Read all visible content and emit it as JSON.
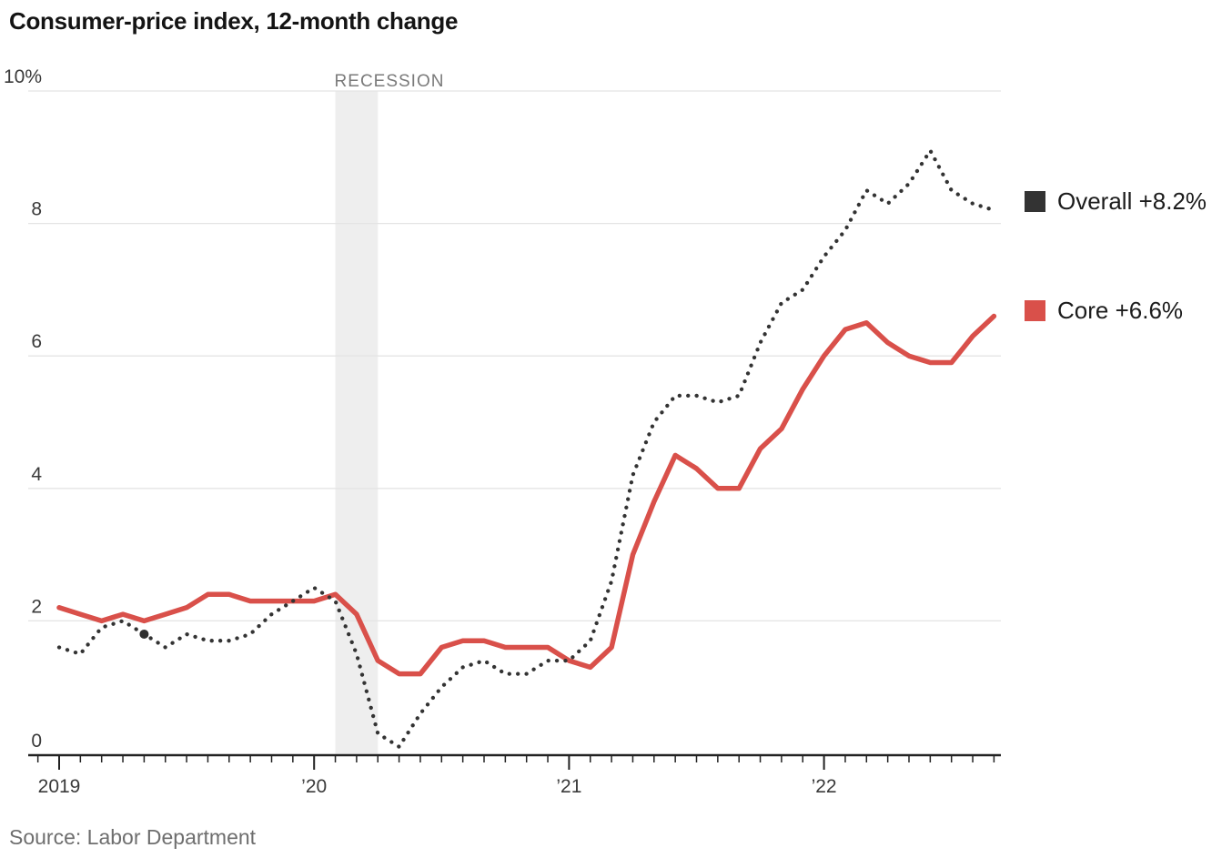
{
  "title": "Consumer-price index, 12-month change",
  "source_note": "Source: Labor Department",
  "legend": {
    "overall": {
      "label": "Overall +8.2%",
      "color": "#333333"
    },
    "core": {
      "label": "Core +6.6%",
      "color": "#d9504a"
    }
  },
  "colors": {
    "grid": "#e4e4e4",
    "axis": "#222222",
    "band": "#eeeeee",
    "recession_text": "#7a7a7a",
    "axis_text": "#3a3a3a"
  },
  "chart_data": {
    "type": "line",
    "title": "Consumer-price index, 12-month change",
    "x_unit": "month",
    "x_start": "2019-01",
    "x_end": "2022-09",
    "x_tick_labels": [
      "2019",
      "’20",
      "’21",
      "’22"
    ],
    "x_tick_label_month_indices": [
      0,
      12,
      24,
      36
    ],
    "y_ticks": [
      0,
      2,
      4,
      6,
      8,
      10
    ],
    "y_tick_labels": [
      "0",
      "2",
      "4",
      "6",
      "8",
      "10%"
    ],
    "ylim": [
      0,
      10
    ],
    "grid": true,
    "legend_position": "right",
    "recession": {
      "label": "RECESSION",
      "from_month_index": 13,
      "to_month_index": 15
    },
    "marker_point": {
      "series": "Overall",
      "month_index": 4,
      "value": 1.8
    },
    "series": [
      {
        "name": "Overall",
        "style": "dotted",
        "color": "#333333",
        "end_label": "Overall +8.2%",
        "values": [
          1.6,
          1.5,
          1.9,
          2.0,
          1.8,
          1.6,
          1.8,
          1.7,
          1.7,
          1.8,
          2.1,
          2.3,
          2.5,
          2.3,
          1.5,
          0.3,
          0.1,
          0.6,
          1.0,
          1.3,
          1.4,
          1.2,
          1.2,
          1.4,
          1.4,
          1.7,
          2.6,
          4.2,
          5.0,
          5.4,
          5.4,
          5.3,
          5.4,
          6.2,
          6.8,
          7.0,
          7.5,
          7.9,
          8.5,
          8.3,
          8.6,
          9.1,
          8.5,
          8.3,
          8.2
        ]
      },
      {
        "name": "Core",
        "style": "solid",
        "color": "#d9504a",
        "end_label": "Core +6.6%",
        "values": [
          2.2,
          2.1,
          2.0,
          2.1,
          2.0,
          2.1,
          2.2,
          2.4,
          2.4,
          2.3,
          2.3,
          2.3,
          2.3,
          2.4,
          2.1,
          1.4,
          1.2,
          1.2,
          1.6,
          1.7,
          1.7,
          1.6,
          1.6,
          1.6,
          1.4,
          1.3,
          1.6,
          3.0,
          3.8,
          4.5,
          4.3,
          4.0,
          4.0,
          4.6,
          4.9,
          5.5,
          6.0,
          6.4,
          6.5,
          6.2,
          6.0,
          5.9,
          5.9,
          6.3,
          6.6
        ]
      }
    ]
  }
}
